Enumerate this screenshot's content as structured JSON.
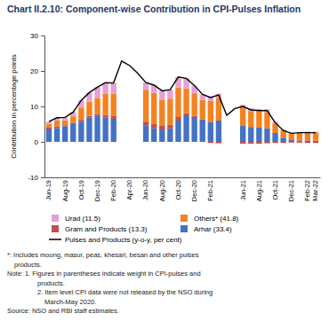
{
  "chart_data": {
    "type": "bar",
    "stacked": true,
    "title": "Chart II.2.10: Component-wise Contribution in CPI-Pulses Inflation",
    "y_label": "Contribution in percentage points",
    "categories": [
      "Jun-19",
      null,
      "Aug-19",
      null,
      "Oct-19",
      null,
      "Dec-19",
      null,
      "Feb-20",
      null,
      "Apr-20",
      null,
      "Jun-20",
      null,
      "Aug-20",
      null,
      "Oct-20",
      null,
      "Dec-20",
      null,
      "Feb-21",
      null,
      null,
      null,
      "Jun-21",
      null,
      "Aug-21",
      null,
      "Oct-21",
      null,
      "Dec-21",
      null,
      "Feb-22",
      "Mar-22"
    ],
    "series": [
      {
        "name": "Arhar (33.4)",
        "type": "bar",
        "color": "#4472c4",
        "values": [
          3.5,
          3.9,
          4.4,
          5.0,
          5.7,
          6.8,
          7.3,
          6.8,
          6.5,
          null,
          null,
          null,
          4.7,
          3.8,
          3.5,
          3.8,
          6.0,
          7.5,
          7.0,
          6.3,
          5.5,
          6.0,
          null,
          null,
          4.5,
          4.2,
          4.0,
          3.8,
          2.5,
          1.2,
          0.5,
          0.3,
          0.4,
          0.3
        ]
      },
      {
        "name": "Gram and Products (13.3)",
        "type": "bar",
        "color": "#c0504d",
        "values": [
          0.5,
          0.5,
          0.3,
          0.4,
          0.5,
          0.5,
          0.6,
          0.8,
          0.9,
          null,
          null,
          null,
          1.0,
          1.2,
          1.0,
          1.0,
          1.0,
          0.6,
          0.3,
          0.0,
          -0.3,
          -0.4,
          null,
          null,
          -0.5,
          -0.5,
          -0.5,
          -0.4,
          -0.3,
          -0.3,
          -0.2,
          -0.2,
          -0.3,
          -0.3
        ]
      },
      {
        "name": "Others* (41.8)",
        "type": "bar",
        "color": "#f58220",
        "values": [
          1.1,
          1.7,
          1.4,
          1.8,
          3.5,
          4.0,
          4.5,
          5.9,
          6.2,
          null,
          null,
          null,
          9.0,
          8.8,
          7.4,
          7.4,
          8.3,
          7.0,
          6.4,
          5.6,
          6.1,
          6.4,
          null,
          null,
          5.2,
          4.5,
          4.5,
          4.6,
          2.7,
          2.0,
          1.9,
          2.3,
          2.3,
          2.4
        ]
      },
      {
        "name": "Urad (11.5)",
        "type": "bar",
        "color": "#e79fd5",
        "values": [
          0.6,
          0.7,
          0.8,
          1.2,
          2.0,
          2.6,
          3.0,
          3.2,
          3.0,
          null,
          null,
          null,
          2.0,
          2.2,
          2.5,
          2.5,
          3.0,
          2.8,
          2.2,
          1.5,
          1.2,
          1.2,
          null,
          null,
          0.8,
          0.8,
          0.8,
          0.8,
          0.5,
          0.3,
          0.2,
          0.2,
          0.2,
          0.2
        ]
      },
      {
        "name": "Pulses and Products (y-o-y, per cent)",
        "type": "line",
        "color": "#000000",
        "line_style": "solid",
        "values": [
          5.7,
          6.8,
          6.9,
          8.4,
          11.7,
          13.9,
          15.4,
          16.7,
          16.6,
          22.8,
          21.5,
          19.3,
          16.7,
          16.0,
          14.4,
          14.7,
          18.3,
          17.9,
          15.9,
          13.4,
          12.5,
          13.2,
          7.5,
          9.4,
          10.0,
          9.0,
          8.8,
          8.8,
          5.4,
          3.2,
          2.4,
          2.6,
          2.6,
          2.6
        ]
      }
    ],
    "ylim": [
      -10,
      30
    ],
    "yticks": [
      -10,
      0,
      10,
      20,
      30
    ],
    "grid": false,
    "legend": "bottom",
    "annotations": [
      "*: Includes moong, masur, peas, khesari, besan and other pulses",
      "products.",
      "Note: 1. Figures in parentheses indicate weight in CPI-pulses and",
      "products.",
      "2. Item level CPI data were not released by the NSO during",
      "March-May 2020.",
      "Source: NSO and RBI staff estimates."
    ]
  }
}
